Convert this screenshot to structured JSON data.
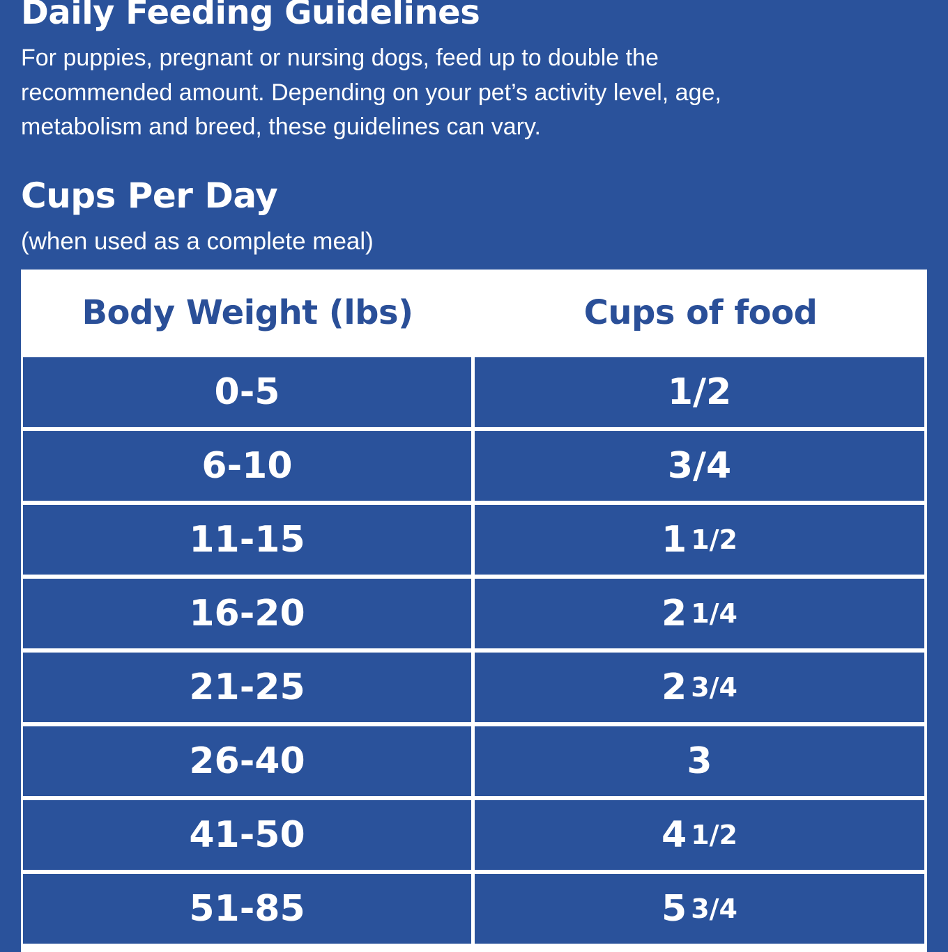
{
  "header": {
    "title": "Daily Feeding Guidelines",
    "intro": "For puppies, pregnant or nursing dogs, feed up to double the recommended amount. Depending on your pet’s activity level, age, metabolism and breed, these guidelines can vary."
  },
  "section": {
    "title": "Cups Per Day",
    "subtitle": "(when used as a complete meal)"
  },
  "table": {
    "columns": [
      "Body Weight (lbs)",
      "Cups of food"
    ],
    "rows": [
      {
        "weight": "0-5",
        "whole": "",
        "fraction": "1/2"
      },
      {
        "weight": "6-10",
        "whole": "",
        "fraction": "3/4"
      },
      {
        "weight": "11-15",
        "whole": "1",
        "fraction": "1/2"
      },
      {
        "weight": "16-20",
        "whole": "2",
        "fraction": "1/4"
      },
      {
        "weight": "21-25",
        "whole": "2",
        "fraction": "3/4"
      },
      {
        "weight": "26-40",
        "whole": "3",
        "fraction": ""
      },
      {
        "weight": "41-50",
        "whole": "4",
        "fraction": "1/2"
      },
      {
        "weight": "51-85",
        "whole": "5",
        "fraction": "3/4"
      }
    ]
  },
  "colors": {
    "background": "#2a529b",
    "header_text": "#2a4f98",
    "grid_lines": "#ffffff"
  }
}
